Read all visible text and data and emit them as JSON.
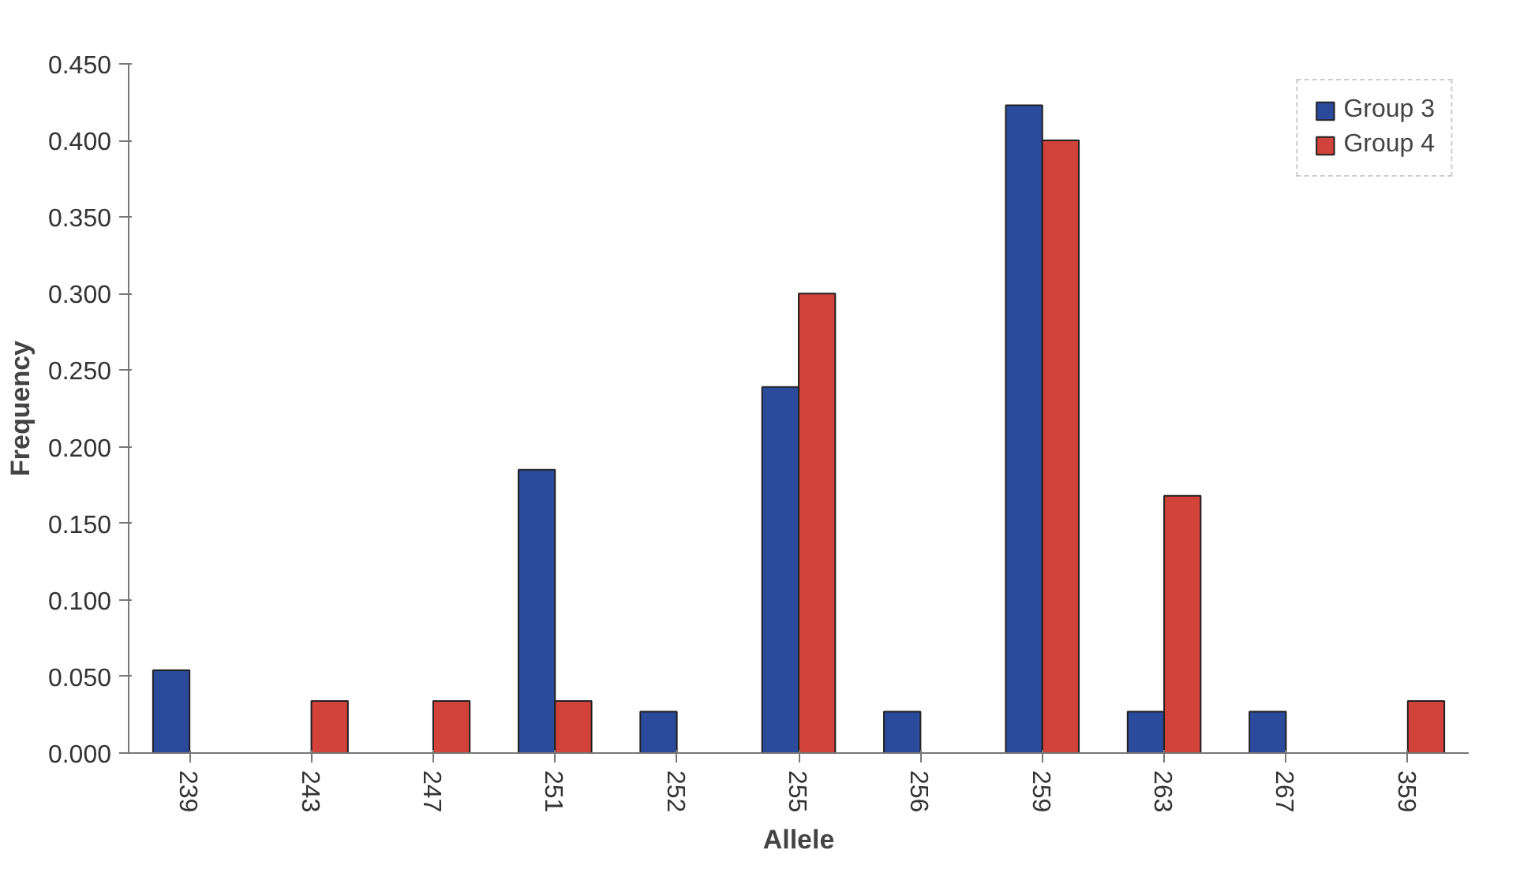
{
  "chart_data": {
    "type": "bar",
    "xlabel": "Allele",
    "ylabel": "Frequency",
    "categories": [
      "239",
      "243",
      "247",
      "251",
      "252",
      "255",
      "256",
      "259",
      "263",
      "267",
      "359"
    ],
    "series": [
      {
        "name": "Group 3",
        "color": "#2b4a9c",
        "values": [
          0.054,
          null,
          null,
          0.185,
          0.027,
          0.239,
          0.027,
          0.423,
          0.027,
          0.027,
          null
        ]
      },
      {
        "name": "Group 4",
        "color": "#d0423a",
        "values": [
          null,
          0.034,
          0.034,
          0.034,
          null,
          0.3,
          null,
          0.4,
          0.168,
          null,
          0.034
        ]
      }
    ],
    "ylim": [
      0,
      0.45
    ],
    "yticks": [
      {
        "value": 0,
        "label": "0.000"
      },
      {
        "value": 0.05,
        "label": "0.050"
      },
      {
        "value": 0.1,
        "label": "0.100"
      },
      {
        "value": 0.15,
        "label": "0.150"
      },
      {
        "value": 0.2,
        "label": "0.200"
      },
      {
        "value": 0.25,
        "label": "0.250"
      },
      {
        "value": 0.3,
        "label": "0.300"
      },
      {
        "value": 0.35,
        "label": "0.350"
      },
      {
        "value": 0.4,
        "label": "0.400"
      },
      {
        "value": 0.45,
        "label": "0.450"
      }
    ],
    "grid": false,
    "legend": "top right"
  }
}
